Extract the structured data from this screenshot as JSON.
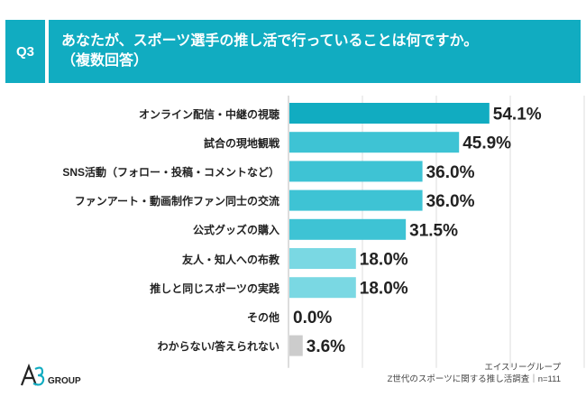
{
  "header": {
    "badge": "Q3",
    "title": "あなたが、スポーツ選手の推し活で行っていることは何ですか。\n（複数回答）"
  },
  "chart_data": {
    "type": "bar",
    "orientation": "horizontal",
    "categories": [
      "オンライン配信・中継の視聴",
      "試合の現地観戦",
      "SNS活動（フォロー・投稿・コメントなど）",
      "ファンアート・動画制作ファン同士の交流",
      "公式グッズの購入",
      "友人・知人への布教",
      "推しと同じスポーツの実践",
      "その他",
      "わからない/答えられない"
    ],
    "values": [
      54.1,
      45.9,
      36.0,
      36.0,
      31.5,
      18.0,
      18.0,
      0.0,
      3.6
    ],
    "value_labels": [
      "54.1%",
      "45.9%",
      "36.0%",
      "36.0%",
      "31.5%",
      "18.0%",
      "18.0%",
      "0.0%",
      "3.6%"
    ],
    "xlim": [
      0,
      100
    ],
    "grid": true,
    "colors": [
      "#11acc1",
      "#3ec3d4",
      "#3ec3d4",
      "#3ec3d4",
      "#3ec3d4",
      "#7ad8e3",
      "#7ad8e3",
      "#7ad8e3",
      "#cccccc"
    ]
  },
  "footer": {
    "line1": "エイスリーグループ",
    "line2": "Z世代のスポーツに関する推し活調査｜n=111"
  },
  "logo": {
    "text": "GROUP",
    "mark_icon": "a3-logo-icon"
  }
}
